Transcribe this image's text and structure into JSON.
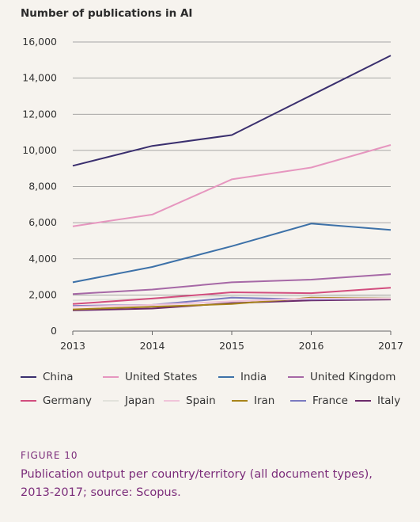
{
  "chart_data": {
    "type": "line",
    "title": "Number of publications in AI",
    "x": [
      "2013",
      "2014",
      "2015",
      "2016",
      "2017"
    ],
    "ylim": [
      0,
      16000
    ],
    "yticks": [
      0,
      2000,
      4000,
      6000,
      8000,
      10000,
      12000,
      14000,
      16000
    ],
    "ytick_labels": [
      "0",
      "2,000",
      "4,000",
      "6,000",
      "8,000",
      "10,000",
      "12,000",
      "14,000",
      "16,000"
    ],
    "grid": "horizontal",
    "legend_position": "bottom",
    "series": [
      {
        "name": "China",
        "color": "#3a2f6e",
        "values": [
          9150,
          10250,
          10850,
          13050,
          15250
        ]
      },
      {
        "name": "United States",
        "color": "#e696bf",
        "values": [
          5800,
          6450,
          8400,
          9050,
          10300
        ]
      },
      {
        "name": "India",
        "color": "#3d71a8",
        "values": [
          2700,
          3550,
          4700,
          5950,
          5600
        ]
      },
      {
        "name": "United Kingdom",
        "color": "#a668a6",
        "values": [
          2050,
          2300,
          2700,
          2850,
          3150
        ]
      },
      {
        "name": "Germany",
        "color": "#d24d7e",
        "values": [
          1500,
          1800,
          2150,
          2100,
          2400
        ]
      },
      {
        "name": "Japan",
        "color": "#e2e2db",
        "values": [
          1700,
          1800,
          1950,
          1950,
          1900
        ]
      },
      {
        "name": "Spain",
        "color": "#f0c3d9",
        "values": [
          1350,
          1450,
          1650,
          1800,
          1800
        ]
      },
      {
        "name": "Iran",
        "color": "#a8841a",
        "values": [
          1200,
          1350,
          1500,
          1850,
          1800
        ]
      },
      {
        "name": "France",
        "color": "#7a7ac0",
        "values": [
          1400,
          1450,
          1850,
          1750,
          1800
        ]
      },
      {
        "name": "Italy",
        "color": "#6b2a6a",
        "values": [
          1150,
          1250,
          1550,
          1700,
          1750
        ]
      }
    ]
  },
  "caption": {
    "figure_label": "FIGURE 10",
    "text_line1": "Publication output per country/territory (all document types),",
    "text_line2": "2013-2017; source: Scopus."
  }
}
